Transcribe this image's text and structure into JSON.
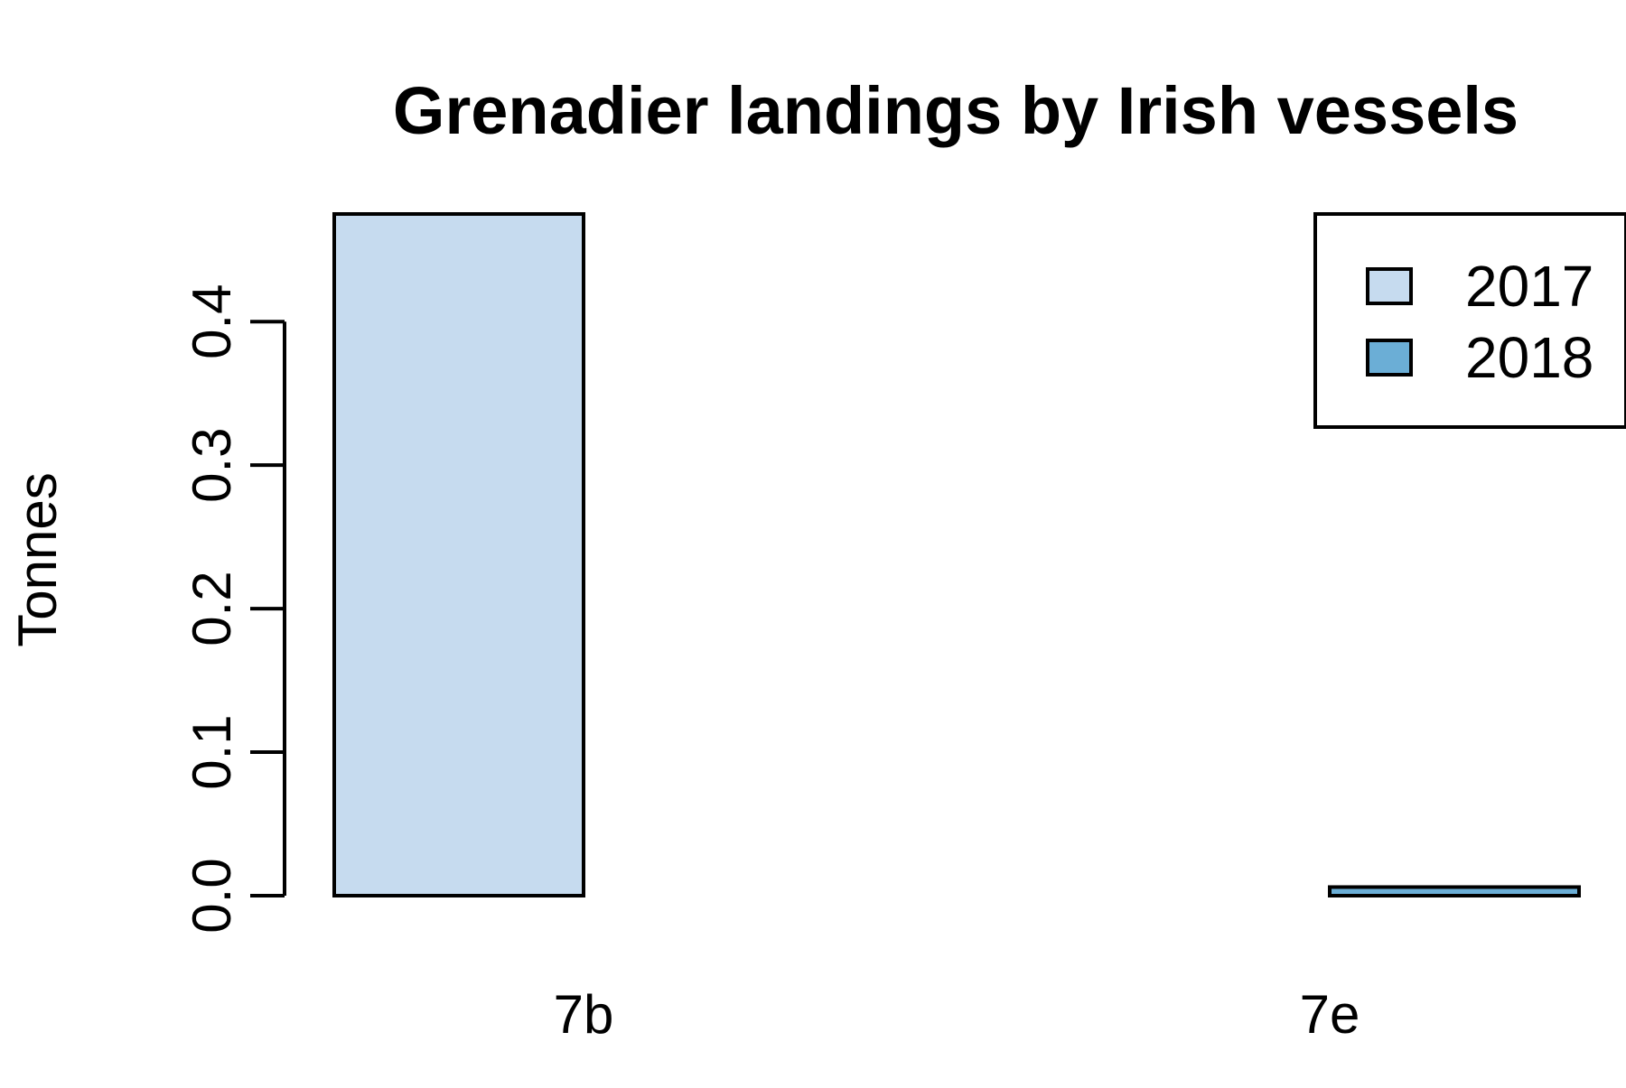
{
  "chart_data": {
    "type": "bar",
    "title": "Grenadier landings by Irish vessels",
    "xlabel": "",
    "ylabel": "Tonnes",
    "categories": [
      "7b",
      "7e"
    ],
    "series": [
      {
        "name": "2017",
        "values": [
          0.475,
          0.0
        ],
        "color": "#c6dbef"
      },
      {
        "name": "2018",
        "values": [
          0.0,
          0.006
        ],
        "color": "#6baed6"
      }
    ],
    "ylim": [
      0,
      0.475
    ],
    "yticks": [
      "0.0",
      "0.1",
      "0.2",
      "0.3",
      "0.4"
    ],
    "grid": false,
    "legend_position": "top-right"
  }
}
